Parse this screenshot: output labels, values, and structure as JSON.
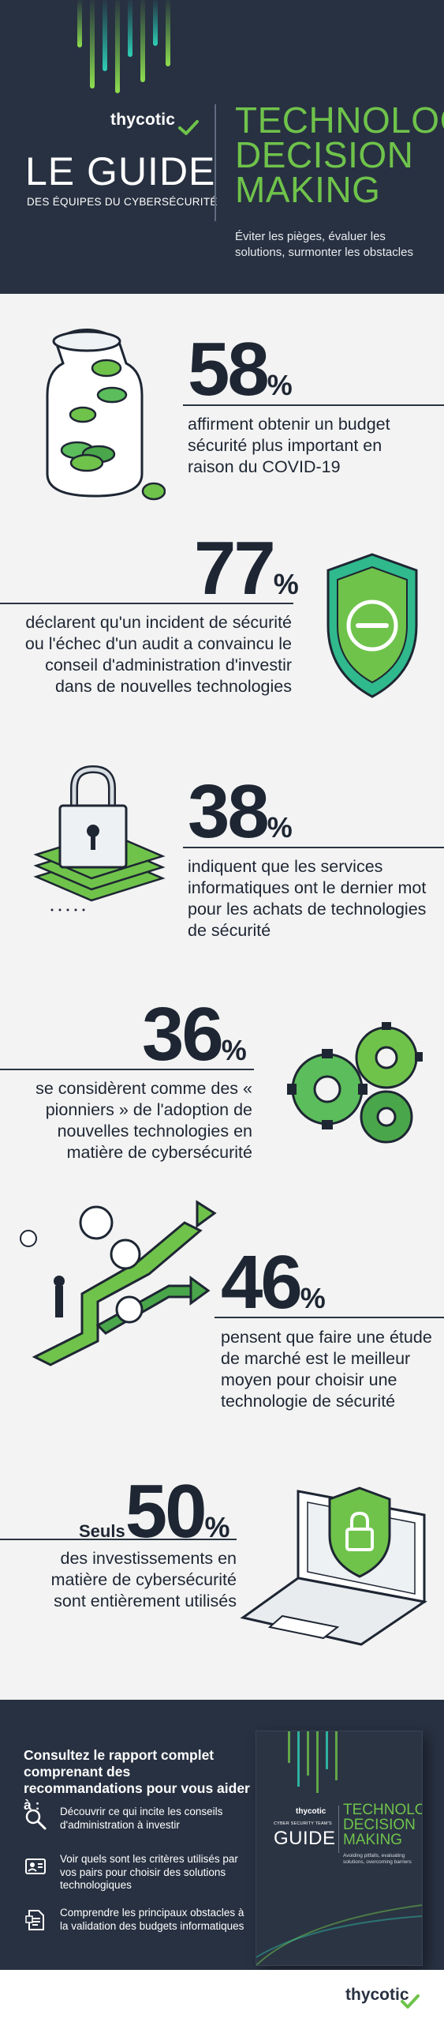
{
  "header": {
    "brand": "thycotic",
    "title": "LE GUIDE",
    "subtitle": "DES ÉQUIPES DU CYBERSÉCURITÉ",
    "right_title_1": "TECHNOLOGY",
    "right_title_2": "DECISION",
    "right_title_3": "MAKING",
    "tagline": "Éviter les pièges, évaluer les solutions, surmonter les obstacles"
  },
  "stats": [
    {
      "prefix": "",
      "value": "58",
      "unit": "%",
      "text": "affirment obtenir un budget sécurité plus important en raison du COVID-19",
      "icon": "coin-jar-icon"
    },
    {
      "prefix": "",
      "value": "77",
      "unit": "%",
      "text": "déclarent qu'un incident de sécurité ou l'échec d'un audit a convaincu le conseil d'administration d'investir dans de nouvelles technologies",
      "icon": "shield-icon"
    },
    {
      "prefix": "",
      "value": "38",
      "unit": "%",
      "text": "indiquent que les services informatiques ont le dernier mot pour les achats de technologies de sécurité",
      "icon": "padlock-money-icon"
    },
    {
      "prefix": "",
      "value": "36",
      "unit": "%",
      "text": "se considèrent comme des « pionniers » de l'adoption de nouvelles technologies en matière de cybersécurité",
      "icon": "gears-icon"
    },
    {
      "prefix": "",
      "value": "46",
      "unit": "%",
      "text": "pensent que faire une étude de marché est le meilleur moyen pour choisir une technologie de sécurité",
      "icon": "path-arrows-icon"
    },
    {
      "prefix": "Seuls",
      "value": "50",
      "unit": "%",
      "text": "des investissements en matière de cybersécurité sont entièrement utilisés",
      "icon": "laptop-lock-icon"
    }
  ],
  "cta": {
    "title": "Consultez le rapport complet comprenant des recommandations pour vous aider à :",
    "items": [
      {
        "text": "Découvrir ce qui incite les conseils d'administration à investir",
        "icon": "magnifier-icon"
      },
      {
        "text": "Voir quels sont les critères utilisés par vos pairs pour choisir des solutions technologiques",
        "icon": "id-card-icon"
      },
      {
        "text": "Comprendre les principaux obstacles à la validation des budgets informatiques",
        "icon": "document-icon"
      }
    ],
    "book": {
      "brand": "thycotic",
      "subtitle": "CYBER SECURITY TEAM'S",
      "title": "GUIDE",
      "right_1": "TECHNOLOGY",
      "right_2": "DECISION",
      "right_3": "MAKING",
      "tagline": "Avoiding pitfalls, evaluating solutions, overcoming barriers"
    }
  },
  "footer": {
    "brand": "thycotic"
  },
  "colors": {
    "navy": "#283141",
    "green": "#6fc34b",
    "ink": "#1e2633",
    "bg": "#f3f3f3"
  }
}
